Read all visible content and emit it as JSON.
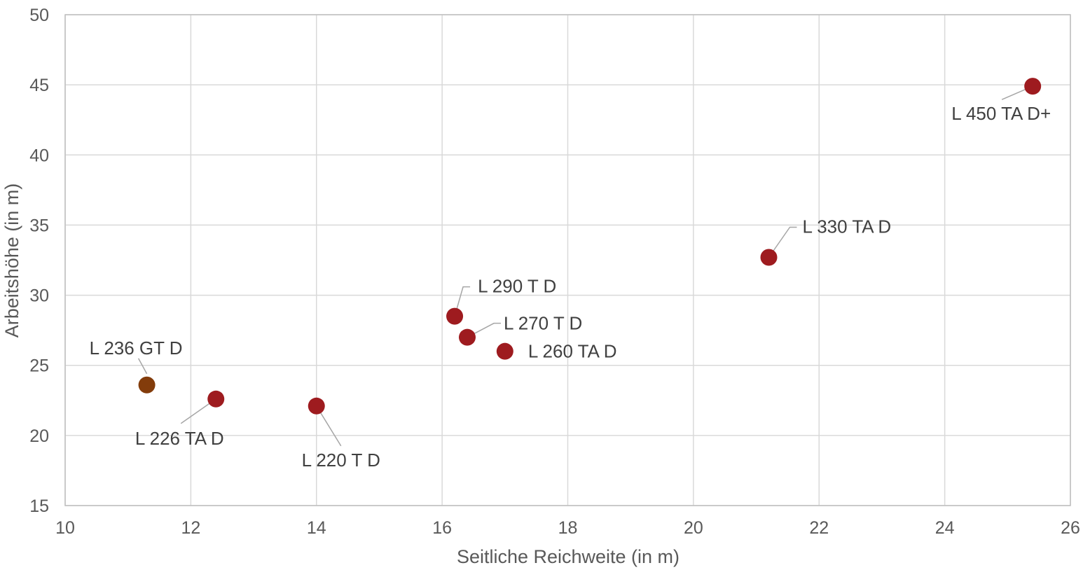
{
  "chart_data": {
    "type": "scatter",
    "xlabel": "Seitliche Reichweite (in m)",
    "ylabel": "Arbeitshöhe (in m)",
    "xlim": [
      10,
      26
    ],
    "ylim": [
      15,
      50
    ],
    "x_ticks": [
      "10",
      "12",
      "14",
      "16",
      "18",
      "20",
      "22",
      "24",
      "26"
    ],
    "y_ticks": [
      "15",
      "20",
      "25",
      "30",
      "35",
      "40",
      "45",
      "50"
    ],
    "grid": true,
    "points": [
      {
        "label": "L 236 GT D",
        "x": 11.3,
        "y": 23.6,
        "color": "#833c0b"
      },
      {
        "label": "L 226 TA D",
        "x": 12.4,
        "y": 22.6,
        "color": "#9e1b1f"
      },
      {
        "label": "L 220 T D",
        "x": 14.0,
        "y": 22.1,
        "color": "#9e1b1f"
      },
      {
        "label": "L 290 T D",
        "x": 16.2,
        "y": 28.5,
        "color": "#9e1b1f"
      },
      {
        "label": "L 270 T D",
        "x": 16.4,
        "y": 27.0,
        "color": "#9e1b1f"
      },
      {
        "label": "L 260 TA D",
        "x": 17.0,
        "y": 26.0,
        "color": "#9e1b1f"
      },
      {
        "label": "L 330 TA D",
        "x": 21.2,
        "y": 32.7,
        "color": "#9e1b1f"
      },
      {
        "label": "L 450 TA D+",
        "x": 25.4,
        "y": 44.9,
        "color": "#9e1b1f"
      }
    ]
  }
}
